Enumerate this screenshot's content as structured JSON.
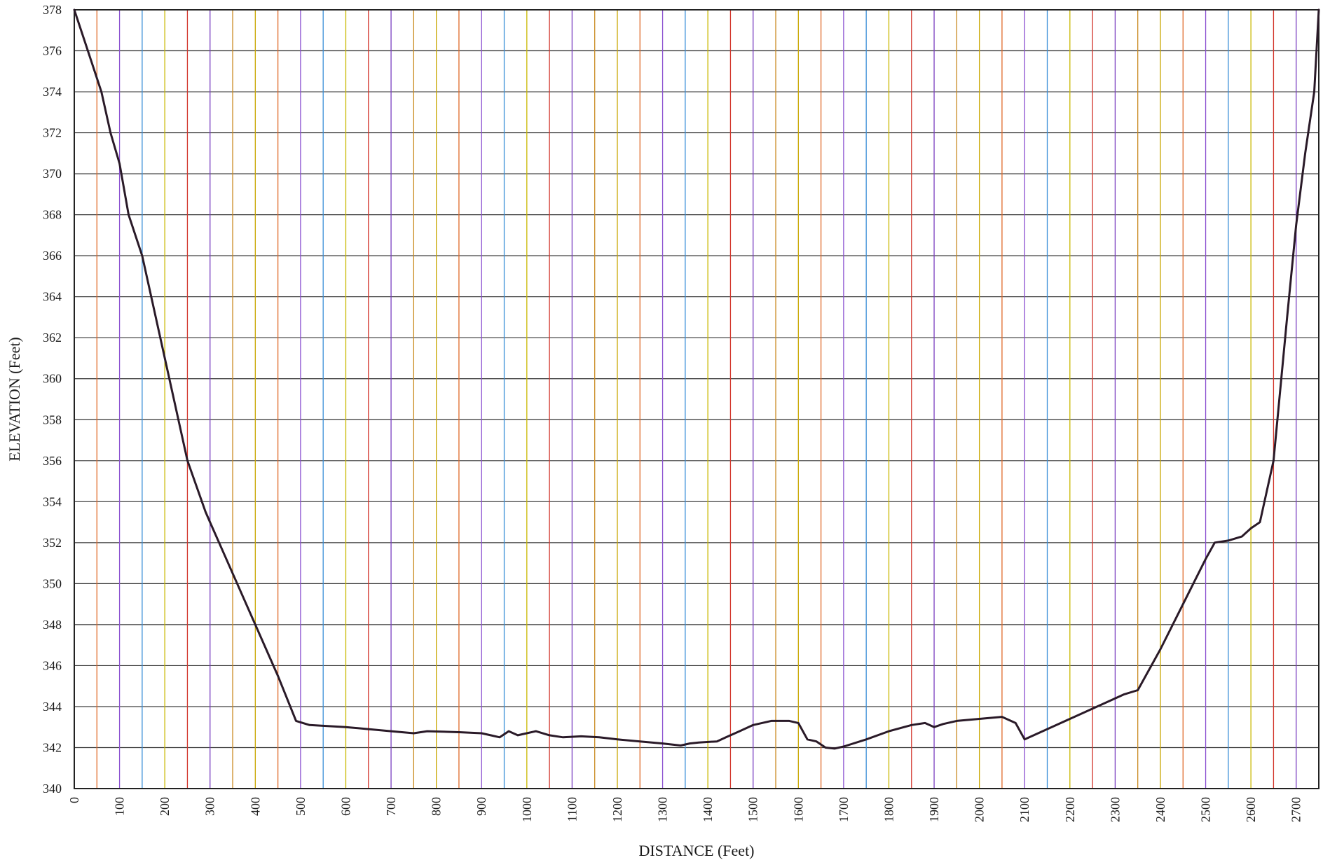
{
  "chart_data": {
    "type": "line",
    "title": "",
    "xlabel": "DISTANCE (Feet)",
    "ylabel": "ELEVATION (Feet)",
    "xlim": [
      0,
      2750
    ],
    "ylim": [
      340,
      378
    ],
    "xticks": [
      0,
      100,
      200,
      300,
      400,
      500,
      600,
      700,
      800,
      900,
      1000,
      1100,
      1200,
      1300,
      1400,
      1500,
      1600,
      1700,
      1800,
      1900,
      2000,
      2100,
      2200,
      2300,
      2400,
      2500,
      2600,
      2700
    ],
    "yticks": [
      340,
      342,
      344,
      346,
      348,
      350,
      352,
      354,
      356,
      358,
      360,
      362,
      364,
      366,
      368,
      370,
      372,
      374,
      376,
      378
    ],
    "grid": true,
    "grid_line_colors": [
      "#c9a600",
      "#e06a2a",
      "#8a4fd0",
      "#3a8fd8",
      "#c9b800",
      "#d2342a",
      "#7a3fc0",
      "#c98a20"
    ],
    "line_color": "#2a1a28",
    "series": [
      {
        "x": [
          0,
          30,
          60,
          80,
          100,
          120,
          150,
          200,
          250,
          290,
          300,
          350,
          400,
          450,
          490,
          520,
          600,
          700,
          750,
          780,
          850,
          900,
          920,
          940,
          960,
          980,
          1000,
          1020,
          1050,
          1080,
          1120,
          1160,
          1200,
          1250,
          1300,
          1340,
          1360,
          1380,
          1420,
          1440,
          1470,
          1500,
          1540,
          1580,
          1600,
          1620,
          1640,
          1660,
          1680,
          1700,
          1750,
          1800,
          1850,
          1880,
          1900,
          1920,
          1950,
          2000,
          2050,
          2080,
          2100,
          2150,
          2200,
          2250,
          2300,
          2320,
          2350,
          2400,
          2450,
          2500,
          2520,
          2550,
          2580,
          2600,
          2620,
          2650,
          2680,
          2700,
          2720,
          2740,
          2750
        ],
        "y": [
          378,
          376,
          374,
          372,
          370.5,
          368,
          366,
          361,
          356,
          353.5,
          353,
          350.5,
          348,
          345.5,
          343.3,
          343.1,
          343,
          342.8,
          342.7,
          342.8,
          342.75,
          342.7,
          342.6,
          342.5,
          342.8,
          342.6,
          342.7,
          342.8,
          342.6,
          342.5,
          342.55,
          342.5,
          342.4,
          342.3,
          342.2,
          342.1,
          342.2,
          342.25,
          342.3,
          342.5,
          342.8,
          343.1,
          343.3,
          343.3,
          343.2,
          342.4,
          342.3,
          342.0,
          341.95,
          342.05,
          342.4,
          342.8,
          343.1,
          343.2,
          343.0,
          343.15,
          343.3,
          343.4,
          343.5,
          343.2,
          342.4,
          342.9,
          343.4,
          343.9,
          344.4,
          344.6,
          344.8,
          346.8,
          349.0,
          351.2,
          352.0,
          352.1,
          352.3,
          352.7,
          353.0,
          356.0,
          363.0,
          367.5,
          371.0,
          374.0,
          378.0
        ]
      }
    ]
  }
}
